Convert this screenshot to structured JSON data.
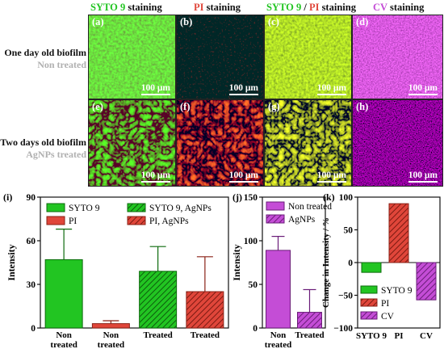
{
  "headers": {
    "h1_a": "SYTO 9",
    "h1_b": " staining",
    "h2_a": "PI",
    "h2_b": " staining",
    "h3_a": "SYTO 9",
    "h3_sep": " / ",
    "h3_b": "PI",
    "h3_c": " staining",
    "h4_a": "CV",
    "h4_b": " staining"
  },
  "row_labels": {
    "row1_title": "One day old biofilm",
    "row1_sub": "Non treated",
    "row2_title": "Two days old biofilm",
    "row2_sub": "AgNPs treated"
  },
  "panels": {
    "a": "(a)",
    "b": "(b)",
    "c": "(c)",
    "d": "(d)",
    "e": "(e)",
    "f": "(f)",
    "g": "(g)",
    "h": "(h)",
    "scale": "100 μm"
  },
  "colors": {
    "syto9": "#22c522",
    "pi": "#e0463a",
    "cv": "#c44dd6"
  },
  "chart_data": [
    {
      "type": "bar",
      "panel": "(i)",
      "ylabel": "Intensity",
      "ylim": [
        0,
        90
      ],
      "yticks": [
        0,
        30,
        60,
        90
      ],
      "categories": [
        "Non treated",
        "Non treated",
        "Treated",
        "Treated"
      ],
      "legend": [
        "SYTO 9",
        "PI",
        "SYTO 9, AgNPs",
        "PI, AgNPs"
      ],
      "bars": [
        {
          "series": "SYTO 9",
          "value": 47,
          "error": 21
        },
        {
          "series": "PI",
          "value": 3,
          "error": 2
        },
        {
          "series": "SYTO 9, AgNPs",
          "value": 39,
          "error": 17
        },
        {
          "series": "PI, AgNPs",
          "value": 25,
          "error": 24
        }
      ]
    },
    {
      "type": "bar",
      "panel": "(j)",
      "ylabel": "Intensity",
      "ylim": [
        0,
        150
      ],
      "yticks": [
        0,
        50,
        100,
        150
      ],
      "categories": [
        "Non treated",
        "Treated"
      ],
      "legend": [
        "Non treated",
        "AgNPs"
      ],
      "bars": [
        {
          "series": "Non treated",
          "value": 89,
          "error": 16
        },
        {
          "series": "AgNPs",
          "value": 18,
          "error": 26
        }
      ]
    },
    {
      "type": "bar",
      "panel": "(k)",
      "ylabel": "Change in Intensity / %",
      "ylim": [
        -100,
        100
      ],
      "yticks": [
        -100,
        -50,
        0,
        50,
        100
      ],
      "categories": [
        "SYTO 9",
        "PI",
        "CV"
      ],
      "legend": [
        "SYTO 9",
        "PI",
        "CV"
      ],
      "bars": [
        {
          "series": "SYTO 9",
          "value": -15
        },
        {
          "series": "PI",
          "value": 90
        },
        {
          "series": "CV",
          "value": -57
        }
      ]
    }
  ]
}
